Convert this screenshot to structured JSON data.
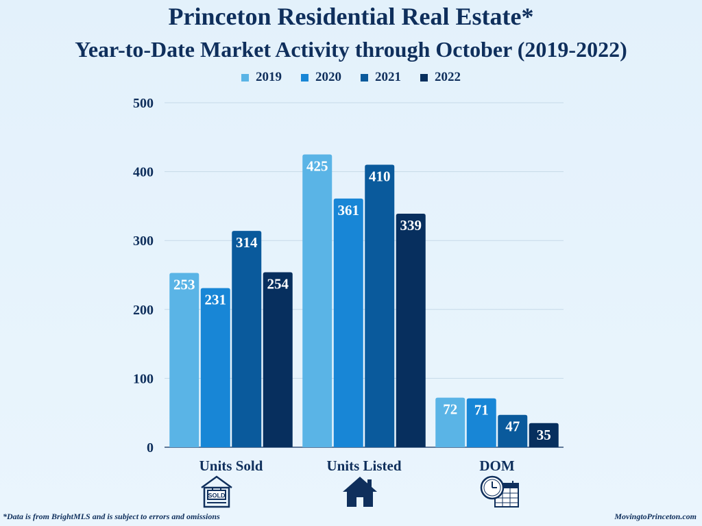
{
  "chart_data": {
    "type": "bar",
    "title": "Princeton Residential Real Estate*",
    "subtitle": "Year-to-Date Market Activity through October (2019-2022)",
    "categories": [
      "Units Sold",
      "Units Listed",
      "DOM"
    ],
    "series": [
      {
        "name": "2019",
        "values": [
          253,
          425,
          72
        ],
        "color": "#5ab4e6"
      },
      {
        "name": "2020",
        "values": [
          231,
          361,
          71
        ],
        "color": "#1886d6"
      },
      {
        "name": "2021",
        "values": [
          314,
          410,
          47
        ],
        "color": "#0a5a9c"
      },
      {
        "name": "2022",
        "values": [
          254,
          339,
          35
        ],
        "color": "#072f5e"
      }
    ],
    "yticks": [
      "0",
      "100",
      "200",
      "300",
      "400",
      "500"
    ],
    "ylim": [
      0,
      500
    ],
    "grid": true,
    "legend_position": "top-center",
    "xlabel": "",
    "ylabel": ""
  },
  "category_icons": [
    "sold-sign-icon",
    "house-icon",
    "clock-calendar-icon"
  ],
  "icon_sold_text": "SOLD",
  "footnote": "*Data is from BrightMLS and is subject to errors and omissions",
  "credit": "MovingtoPrinceton.com"
}
